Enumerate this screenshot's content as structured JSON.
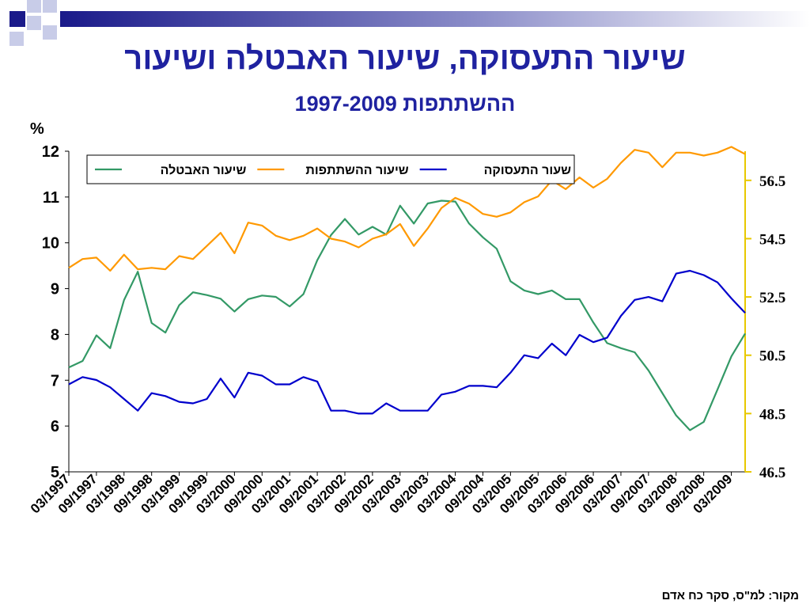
{
  "slide": {
    "title_line1": "שיעור התעסוקה, שיעור האבטלה ושיעור",
    "title_line2": "ההשתתפות 1997-2009",
    "source": "מקור: למ\"ס, סקר כח אדם"
  },
  "colors": {
    "title": "#1f22a0",
    "unemployment": "#339966",
    "participation": "#ff9900",
    "employment": "#0000cc",
    "right_axis": "#e8c800"
  },
  "chart_data": {
    "type": "line",
    "left_axis": {
      "unit": "%",
      "ylim": [
        5,
        12
      ],
      "ticks": [
        "5",
        "6",
        "7",
        "8",
        "9",
        "10",
        "11",
        "12"
      ]
    },
    "right_axis": {
      "ylim": [
        46.5,
        57.5
      ],
      "ticks": [
        "46.5",
        "48.5",
        "50.5",
        "52.5",
        "54.5",
        "56.5"
      ]
    },
    "x_tick_labels": [
      "03/1997",
      "09/1997",
      "03/1998",
      "09/1998",
      "03/1999",
      "09/1999",
      "03/2000",
      "09/2000",
      "03/2001",
      "09/2001",
      "03/2002",
      "09/2002",
      "03/2003",
      "09/2003",
      "03/2004",
      "09/2004",
      "03/2005",
      "09/2005",
      "03/2006",
      "09/2006",
      "03/2007",
      "09/2007",
      "03/2008",
      "09/2008",
      "03/2009"
    ],
    "legend": {
      "placement": "top",
      "order": [
        "unemployment",
        "participation",
        "employment"
      ]
    },
    "series": [
      {
        "key": "unemployment",
        "name": "שיעור האבטלה",
        "axis": "left",
        "color": "#339966",
        "values": [
          7.28,
          7.42,
          7.98,
          7.7,
          8.75,
          9.37,
          8.25,
          8.04,
          8.64,
          8.92,
          8.86,
          8.78,
          8.5,
          8.77,
          8.85,
          8.82,
          8.61,
          8.88,
          9.62,
          10.17,
          10.52,
          10.18,
          10.35,
          10.18,
          10.81,
          10.42,
          10.86,
          10.92,
          10.9,
          10.42,
          10.12,
          9.87,
          9.16,
          8.96,
          8.88,
          8.96,
          8.77,
          8.77,
          8.26,
          7.81,
          7.7,
          7.61,
          7.21,
          6.72,
          6.23,
          5.91,
          6.09,
          6.8,
          7.52,
          8.02
        ]
      },
      {
        "key": "participation",
        "name": "שיעור ההשתתפות",
        "axis": "right",
        "color": "#ff9900",
        "values": [
          53.5,
          53.8,
          53.85,
          53.4,
          53.95,
          53.45,
          53.5,
          53.45,
          53.9,
          53.8,
          54.25,
          54.7,
          54.0,
          55.05,
          54.95,
          54.6,
          54.45,
          54.6,
          54.85,
          54.5,
          54.4,
          54.2,
          54.5,
          54.65,
          55.0,
          54.25,
          54.85,
          55.55,
          55.9,
          55.7,
          55.35,
          55.25,
          55.4,
          55.75,
          55.95,
          56.5,
          56.2,
          56.6,
          56.25,
          56.55,
          57.1,
          57.55,
          57.45,
          56.95,
          57.45,
          57.45,
          57.35,
          57.45,
          57.65,
          57.4
        ]
      },
      {
        "key": "employment",
        "name": "שעור התעסוקה",
        "axis": "right",
        "color": "#0000cc",
        "values": [
          49.5,
          49.75,
          49.65,
          49.4,
          49.0,
          48.6,
          49.2,
          49.1,
          48.9,
          48.85,
          49.0,
          49.7,
          49.05,
          49.9,
          49.8,
          49.5,
          49.5,
          49.75,
          49.6,
          48.6,
          48.6,
          48.5,
          48.5,
          48.85,
          48.6,
          48.6,
          48.6,
          49.15,
          49.25,
          49.45,
          49.45,
          49.4,
          49.9,
          50.5,
          50.4,
          50.9,
          50.5,
          51.2,
          50.95,
          51.1,
          51.85,
          52.4,
          52.5,
          52.35,
          53.3,
          53.4,
          53.25,
          53.0,
          52.45,
          51.95
        ]
      }
    ]
  }
}
